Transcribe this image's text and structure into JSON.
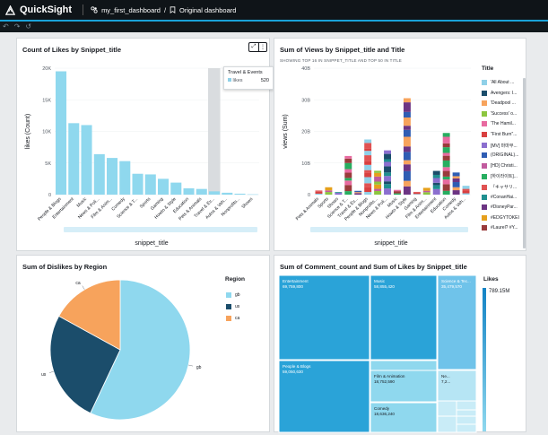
{
  "app": {
    "name": "QuickSight",
    "breadcrumb_first": "my_first_dashboard",
    "breadcrumb_sep": "/",
    "breadcrumb_second": "Original dashboard"
  },
  "toolbar": {
    "undo": "↶",
    "redo": "↷",
    "reset": "↺"
  },
  "likes_chart": {
    "tooltip_title": "Travel & Events",
    "tooltip_label": "likes",
    "tooltip_value": "520",
    "chart_data": {
      "type": "bar",
      "title": "Count of Likes by Snippet_title",
      "xlabel": "snippet_title",
      "ylabel": "likes (Count)",
      "ylim": [
        0,
        20000
      ],
      "yticks": [
        "0",
        "5K",
        "10K",
        "15K",
        "20K"
      ],
      "categories": [
        "People & Blogs",
        "Entertainment",
        "Music",
        "News & Poli...",
        "Film & Anim...",
        "Comedy",
        "Science & T...",
        "Sports",
        "Gaming",
        "Howto & Style",
        "Education",
        "Pets & Animals",
        "Travel & Ev...",
        "Autos & Veh...",
        "Nonprofits...",
        "Shows"
      ],
      "values": [
        19500,
        11300,
        11000,
        6400,
        5800,
        5300,
        3300,
        3200,
        2500,
        1900,
        1000,
        900,
        520,
        300,
        150,
        50
      ]
    }
  },
  "views_chart": {
    "subtitle": "SHOWING TOP 16 IN SNIPPET_TITLE AND TOP 50 IN TITLE",
    "legend_title": "Title",
    "legend": [
      "'All About ...",
      "Avengers: I...",
      "'Deadpool ...",
      "'Success' o...",
      "'The Hamil...",
      "\"First Burn\"...",
      "[MV] 마마무...",
      "(ORIGINAL)...",
      "[HD] Christi...",
      "[하이라이트]...",
      "『キャサリ...",
      "#ConanHai...",
      "#DisneyPar...",
      "#EDGYTOKEI",
      "#Laurel? #Y..."
    ],
    "legend_colors": [
      "#8fd0e8",
      "#1b4d6b",
      "#f7a35c",
      "#8cc63f",
      "#e86aa0",
      "#d94040",
      "#8b6fcf",
      "#2f5db3",
      "#c15b9e",
      "#27ae60",
      "#e05252",
      "#1f8f8f",
      "#6c3483",
      "#e6a01c",
      "#9a3b3b"
    ],
    "chart_data": {
      "type": "bar",
      "title": "Sum of Views by Snippet_title and Title",
      "xlabel": "snippet_title",
      "ylabel": "views (Sum)",
      "ylim": [
        0,
        40000000000
      ],
      "yticks": [
        "0",
        "10B",
        "20B",
        "30B",
        "40B"
      ],
      "categories": [
        "Pets & Animals",
        "Sports",
        "Shows",
        "Science & T...",
        "Travel & Ev...",
        "People & Blogs",
        "Nonprofits...",
        "News & Poli...",
        "Music",
        "Howto & Style",
        "Gaming",
        "Film & Anim...",
        "Entertainment",
        "Education",
        "Comedy",
        "Autos & Veh..."
      ],
      "values": [
        1500000000,
        2500000000,
        800000000,
        12500000000,
        1200000000,
        18000000000,
        8000000000,
        14000000000,
        1500000000,
        30500000000,
        1000000000,
        2300000000,
        7500000000,
        19500000000,
        7000000000,
        2800000000
      ]
    }
  },
  "dislikes_chart": {
    "legend_title": "Region",
    "chart_data": {
      "type": "pie",
      "title": "Sum of Dislikes by Region",
      "categories": [
        "gb",
        "us",
        "ca"
      ],
      "values": [
        57,
        26,
        17
      ],
      "colors": [
        "#8fd8ee",
        "#1b4d6b",
        "#f7a35c"
      ]
    }
  },
  "treemap": {
    "title": "Sum of Comment_count and Sum of Likes by Snippet_title",
    "legend_title": "Likes",
    "legend_value": "789.15M",
    "chart_data": {
      "type": "treemap",
      "items": [
        {
          "name": "Entertainment",
          "value": "69,759,800"
        },
        {
          "name": "Music",
          "value": "58,855,420"
        },
        {
          "name": "Science & Tec...",
          "value": "35,479,570"
        },
        {
          "name": "People & Blogs",
          "value": "59,050,630"
        },
        {
          "name": "Film & Animation",
          "value": "18,752,590"
        },
        {
          "name": "Ne...",
          "value": "7,2..."
        },
        {
          "name": "Comedy",
          "value": "18,636,240"
        }
      ]
    }
  }
}
